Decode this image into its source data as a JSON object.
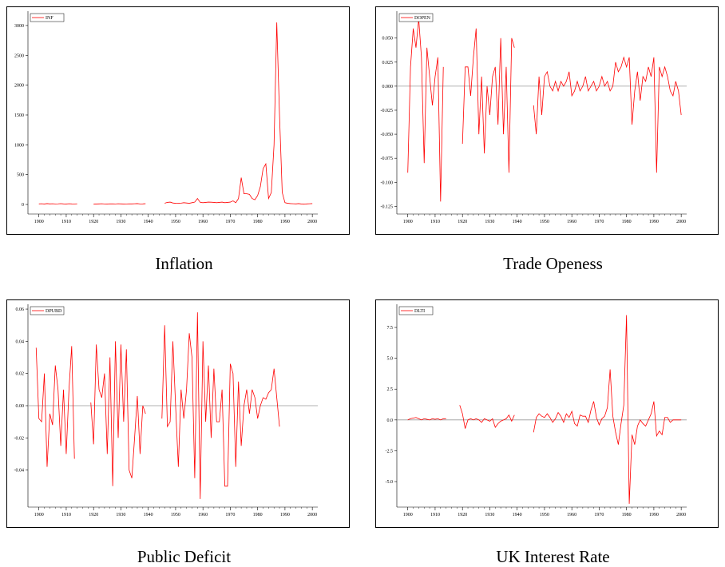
{
  "chart_data": [
    {
      "type": "line",
      "title": "Inflation",
      "x": [
        1900,
        1901,
        1902,
        1903,
        1904,
        1905,
        1906,
        1907,
        1908,
        1909,
        1910,
        1911,
        1912,
        1913,
        1914,
        1915,
        1916,
        1917,
        1918,
        1919,
        1920,
        1921,
        1922,
        1923,
        1924,
        1925,
        1926,
        1927,
        1928,
        1929,
        1930,
        1931,
        1932,
        1933,
        1934,
        1935,
        1936,
        1937,
        1938,
        1939,
        1940,
        1941,
        1942,
        1943,
        1944,
        1945,
        1946,
        1947,
        1948,
        1949,
        1950,
        1951,
        1952,
        1953,
        1954,
        1955,
        1956,
        1957,
        1958,
        1959,
        1960,
        1961,
        1962,
        1963,
        1964,
        1965,
        1966,
        1967,
        1968,
        1969,
        1970,
        1971,
        1972,
        1973,
        1974,
        1975,
        1976,
        1977,
        1978,
        1979,
        1980,
        1981,
        1982,
        1983,
        1984,
        1985,
        1986,
        1987,
        1988,
        1989,
        1990,
        1991,
        1992,
        1993,
        1994,
        1995,
        1996,
        1997,
        1998,
        1999,
        2000
      ],
      "series": [
        {
          "name": "INF",
          "color": "#ff0000",
          "values": [
            10,
            12,
            8,
            15,
            10,
            12,
            9,
            11,
            14,
            10,
            8,
            12,
            10,
            9,
            11,
            null,
            null,
            null,
            null,
            null,
            5,
            8,
            10,
            12,
            9,
            8,
            11,
            10,
            9,
            12,
            10,
            8,
            9,
            11,
            10,
            12,
            15,
            9,
            10,
            13,
            null,
            null,
            null,
            null,
            null,
            null,
            20,
            35,
            40,
            25,
            20,
            18,
            22,
            30,
            25,
            20,
            30,
            40,
            100,
            35,
            30,
            35,
            40,
            38,
            35,
            30,
            35,
            40,
            30,
            35,
            40,
            60,
            30,
            100,
            450,
            180,
            180,
            170,
            100,
            80,
            150,
            300,
            600,
            680,
            100,
            200,
            1000,
            3050,
            1500,
            200,
            30,
            20,
            15,
            12,
            10,
            15,
            8,
            5,
            10,
            12,
            15
          ]
        }
      ],
      "xlim": [
        1896,
        2002
      ],
      "xticks": [
        1900,
        1910,
        1920,
        1930,
        1940,
        1950,
        1960,
        1970,
        1980,
        1990,
        2000
      ],
      "ylim": [
        -160,
        3240
      ],
      "yticks": [
        0,
        500,
        1000,
        1500,
        2000,
        2500,
        3000
      ]
    },
    {
      "type": "line",
      "title": "Trade Openess",
      "x": [
        1900,
        1901,
        1902,
        1903,
        1904,
        1905,
        1906,
        1907,
        1908,
        1909,
        1910,
        1911,
        1912,
        1913,
        1914,
        1915,
        1916,
        1917,
        1918,
        1919,
        1920,
        1921,
        1922,
        1923,
        1924,
        1925,
        1926,
        1927,
        1928,
        1929,
        1930,
        1931,
        1932,
        1933,
        1934,
        1935,
        1936,
        1937,
        1938,
        1939,
        1940,
        1941,
        1942,
        1943,
        1944,
        1945,
        1946,
        1947,
        1948,
        1949,
        1950,
        1951,
        1952,
        1953,
        1954,
        1955,
        1956,
        1957,
        1958,
        1959,
        1960,
        1961,
        1962,
        1963,
        1964,
        1965,
        1966,
        1967,
        1968,
        1969,
        1970,
        1971,
        1972,
        1973,
        1974,
        1975,
        1976,
        1977,
        1978,
        1979,
        1980,
        1981,
        1982,
        1983,
        1984,
        1985,
        1986,
        1987,
        1988,
        1989,
        1990,
        1991,
        1992,
        1993,
        1994,
        1995,
        1996,
        1997,
        1998,
        1999,
        2000
      ],
      "series": [
        {
          "name": "DOPEN",
          "color": "#ff0000",
          "values": [
            -0.09,
            0.02,
            0.06,
            0.04,
            0.07,
            0.03,
            -0.08,
            0.04,
            0.01,
            -0.02,
            0.01,
            0.03,
            -0.12,
            0.02,
            null,
            null,
            null,
            null,
            null,
            null,
            -0.06,
            0.02,
            0.02,
            -0.01,
            0.03,
            0.06,
            -0.05,
            0.01,
            -0.07,
            0.0,
            -0.03,
            0.01,
            0.02,
            -0.04,
            0.05,
            -0.05,
            0.02,
            -0.09,
            0.05,
            0.04,
            null,
            null,
            null,
            null,
            null,
            null,
            -0.02,
            -0.05,
            0.01,
            -0.03,
            0.01,
            0.015,
            0.0,
            -0.005,
            0.005,
            -0.005,
            0.005,
            0.0,
            0.005,
            0.015,
            -0.01,
            -0.005,
            0.005,
            -0.005,
            0.0,
            0.01,
            -0.005,
            0.0,
            0.005,
            -0.005,
            0.0,
            0.01,
            0.0,
            0.005,
            -0.005,
            0.0,
            0.025,
            0.015,
            0.02,
            0.03,
            0.02,
            0.03,
            -0.04,
            -0.005,
            0.015,
            -0.015,
            0.01,
            0.005,
            0.02,
            0.01,
            0.03,
            -0.09,
            0.02,
            0.01,
            0.02,
            0.01,
            -0.005,
            -0.01,
            0.005,
            -0.005,
            -0.03
          ]
        }
      ],
      "xlim": [
        1896,
        2002
      ],
      "xticks": [
        1900,
        1910,
        1920,
        1930,
        1940,
        1950,
        1960,
        1970,
        1980,
        1990,
        2000
      ],
      "ylim": [
        -0.133,
        0.078
      ],
      "yticks": [
        {
          "value": 0.05,
          "label": "0.050"
        },
        0.025,
        {
          "value": 0,
          "label": "0.000"
        },
        -0.025,
        {
          "value": -0.05,
          "label": "-0.050"
        },
        -0.075,
        {
          "value": -0.1,
          "label": "-0.100"
        },
        -0.125
      ],
      "hline": 0
    },
    {
      "type": "line",
      "title": "Public Deficit",
      "x": [
        1899,
        1900,
        1901,
        1902,
        1903,
        1904,
        1905,
        1906,
        1907,
        1908,
        1909,
        1910,
        1911,
        1912,
        1913,
        1914,
        1915,
        1916,
        1917,
        1918,
        1919,
        1920,
        1921,
        1922,
        1923,
        1924,
        1925,
        1926,
        1927,
        1928,
        1929,
        1930,
        1931,
        1932,
        1933,
        1934,
        1935,
        1936,
        1937,
        1938,
        1939,
        1940,
        1941,
        1942,
        1943,
        1944,
        1945,
        1946,
        1947,
        1948,
        1949,
        1950,
        1951,
        1952,
        1953,
        1954,
        1955,
        1956,
        1957,
        1958,
        1959,
        1960,
        1961,
        1962,
        1963,
        1964,
        1965,
        1966,
        1967,
        1968,
        1969,
        1970,
        1971,
        1972,
        1973,
        1974,
        1975,
        1976,
        1977,
        1978,
        1979,
        1980,
        1981,
        1982,
        1983,
        1984,
        1985,
        1986,
        1987,
        1988
      ],
      "series": [
        {
          "name": "DPUBD",
          "color": "#ff0000",
          "values": [
            0.036,
            -0.008,
            -0.01,
            0.02,
            -0.038,
            -0.005,
            -0.012,
            0.025,
            0.01,
            -0.025,
            0.01,
            -0.03,
            0.01,
            0.037,
            -0.033,
            null,
            null,
            null,
            null,
            null,
            0.002,
            -0.024,
            0.038,
            0.01,
            0.005,
            0.02,
            -0.03,
            0.03,
            -0.05,
            0.04,
            -0.02,
            0.038,
            -0.01,
            0.035,
            -0.04,
            -0.045,
            -0.02,
            0.006,
            -0.03,
            0.0,
            -0.005,
            null,
            null,
            null,
            null,
            null,
            -0.008,
            0.05,
            -0.013,
            -0.01,
            0.04,
            0.0,
            -0.038,
            0.01,
            -0.008,
            0.01,
            0.045,
            0.03,
            -0.045,
            0.058,
            -0.058,
            0.04,
            -0.01,
            0.025,
            -0.02,
            0.023,
            -0.01,
            -0.01,
            0.01,
            -0.05,
            -0.05,
            0.026,
            0.02,
            -0.038,
            0.015,
            -0.025,
            0.0,
            0.01,
            -0.005,
            0.01,
            0.005,
            -0.008,
            0.0,
            0.005,
            0.004,
            0.008,
            0.01,
            0.023,
            0.005,
            -0.013
          ]
        }
      ],
      "xlim": [
        1896,
        2002
      ],
      "xticks": [
        1900,
        1910,
        1920,
        1930,
        1940,
        1950,
        1960,
        1970,
        1980,
        1990,
        2000
      ],
      "ylim": [
        -0.063,
        0.063
      ],
      "yticks": [
        0.06,
        0.04,
        0.02,
        {
          "value": 0,
          "label": "0.00"
        },
        -0.02,
        -0.04
      ],
      "hline": 0
    },
    {
      "type": "line",
      "title": "UK Interest Rate",
      "x": [
        1900,
        1901,
        1902,
        1903,
        1904,
        1905,
        1906,
        1907,
        1908,
        1909,
        1910,
        1911,
        1912,
        1913,
        1914,
        1915,
        1916,
        1917,
        1918,
        1919,
        1920,
        1921,
        1922,
        1923,
        1924,
        1925,
        1926,
        1927,
        1928,
        1929,
        1930,
        1931,
        1932,
        1933,
        1934,
        1935,
        1936,
        1937,
        1938,
        1939,
        1940,
        1941,
        1942,
        1943,
        1944,
        1945,
        1946,
        1947,
        1948,
        1949,
        1950,
        1951,
        1952,
        1953,
        1954,
        1955,
        1956,
        1957,
        1958,
        1959,
        1960,
        1961,
        1962,
        1963,
        1964,
        1965,
        1966,
        1967,
        1968,
        1969,
        1970,
        1971,
        1972,
        1973,
        1974,
        1975,
        1976,
        1977,
        1978,
        1979,
        1980,
        1981,
        1982,
        1983,
        1984,
        1985,
        1986,
        1987,
        1988,
        1989,
        1990,
        1991,
        1992,
        1993,
        1994,
        1995,
        1996,
        1997,
        1998,
        1999,
        2000
      ],
      "series": [
        {
          "name": "DLTI",
          "color": "#ff0000",
          "values": [
            0.0,
            0.1,
            0.15,
            0.2,
            0.1,
            0.0,
            0.1,
            0.05,
            0.0,
            0.1,
            0.05,
            0.1,
            0.0,
            0.1,
            0.1,
            null,
            null,
            null,
            null,
            1.2,
            0.5,
            -0.7,
            0.0,
            0.1,
            0.0,
            0.1,
            0.0,
            -0.2,
            0.1,
            0.0,
            -0.1,
            0.1,
            -0.6,
            -0.3,
            -0.1,
            0.0,
            0.1,
            0.4,
            -0.1,
            0.4,
            null,
            null,
            null,
            null,
            null,
            null,
            -1.0,
            0.2,
            0.5,
            0.3,
            0.2,
            0.5,
            0.2,
            -0.2,
            0.1,
            0.6,
            0.3,
            -0.2,
            0.5,
            0.2,
            0.7,
            -0.3,
            -0.5,
            0.4,
            0.3,
            0.3,
            -0.2,
            0.8,
            1.5,
            0.2,
            -0.4,
            0.1,
            0.3,
            1.0,
            4.1,
            0.3,
            -1.0,
            -2.0,
            -0.3,
            1.2,
            8.5,
            -6.8,
            -1.2,
            -2.0,
            -0.5,
            0.0,
            -0.3,
            -0.5,
            0.0,
            0.5,
            1.5,
            -1.3,
            -0.9,
            -1.2,
            0.2,
            0.2,
            -0.2,
            0.0,
            0.0,
            0.0,
            0.0
          ]
        }
      ],
      "xlim": [
        1896,
        2002
      ],
      "xticks": [
        1900,
        1910,
        1920,
        1930,
        1940,
        1950,
        1960,
        1970,
        1980,
        1990,
        2000
      ],
      "ylim": [
        -7.07,
        9.38
      ],
      "yticks": [
        7.5,
        {
          "value": 5,
          "label": "5.0"
        },
        {
          "value": 2.5,
          "label": "2.5"
        },
        {
          "value": 0,
          "label": "0.0"
        },
        -2.5,
        {
          "value": -5,
          "label": "-5.0"
        }
      ],
      "hline": 0
    }
  ]
}
